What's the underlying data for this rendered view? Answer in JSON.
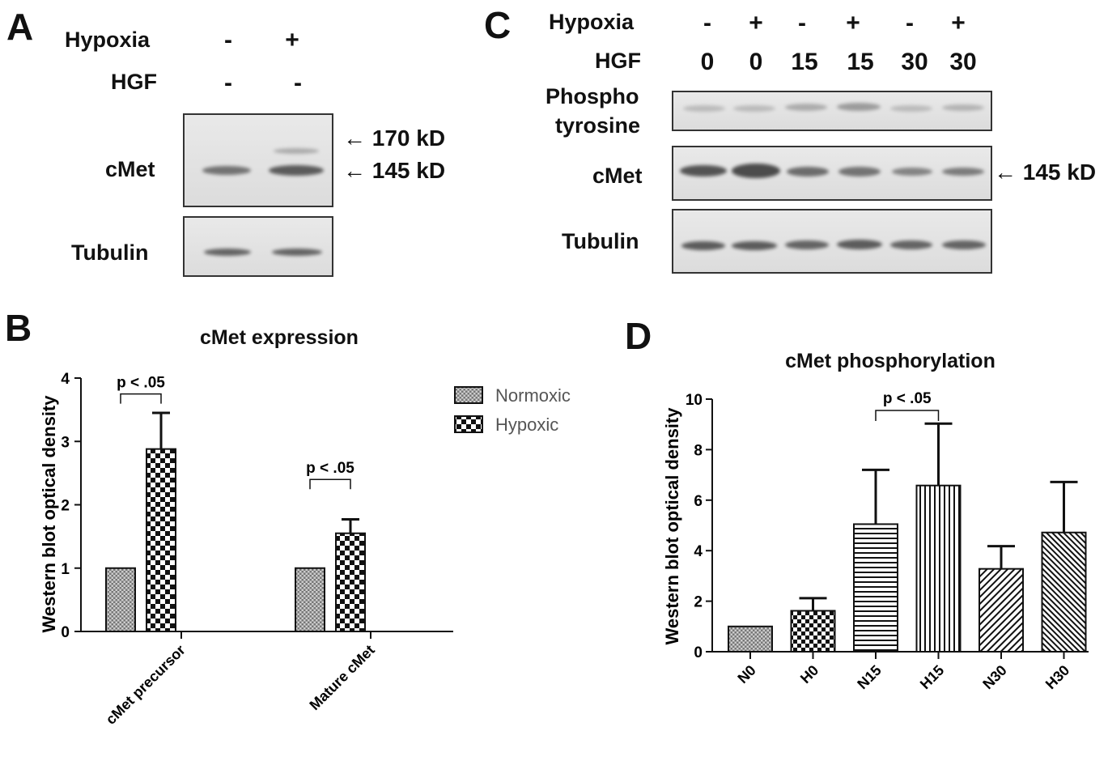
{
  "panels": {
    "A": {
      "letter": "A",
      "hypoxia_label": "Hypoxia",
      "hgf_label": "HGF",
      "hypoxia_values": [
        "-",
        "+"
      ],
      "hgf_values": [
        "-",
        "-"
      ],
      "row_cmet": "cMet",
      "row_tubulin": "Tubulin",
      "marker_170": "170 kD",
      "marker_145": "145 kD"
    },
    "C": {
      "letter": "C",
      "hypoxia_label": "Hypoxia",
      "hgf_label": "HGF",
      "hypoxia_values": [
        "-",
        "+",
        "-",
        "+",
        "-",
        "+"
      ],
      "hgf_values": [
        "0",
        "0",
        "15",
        "15",
        "30",
        "30"
      ],
      "row_phospho_1": "Phospho",
      "row_phospho_2": "tyrosine",
      "row_cmet": "cMet",
      "row_tubulin": "Tubulin",
      "marker_145": "145 kD"
    },
    "B": {
      "letter": "B"
    },
    "D": {
      "letter": "D"
    }
  },
  "chart_data": [
    {
      "type": "bar",
      "panel": "B",
      "title": "cMet expression",
      "ylabel": "Western blot optical density",
      "categories": [
        "cMet precursor",
        "Mature cMet"
      ],
      "series": [
        {
          "name": "Normoxic",
          "values": [
            1.0,
            1.0
          ],
          "error": [
            0,
            0
          ]
        },
        {
          "name": "Hypoxic",
          "values": [
            2.88,
            1.55
          ],
          "error": [
            0.57,
            0.22
          ]
        }
      ],
      "ylim": [
        0,
        4
      ],
      "yticks": [
        0,
        1,
        2,
        3,
        4
      ],
      "annotations": [
        "p < .05",
        "p < .05"
      ],
      "legend": "right"
    },
    {
      "type": "bar",
      "panel": "D",
      "title": "cMet phosphorylation",
      "ylabel": "Western blot optical density",
      "categories": [
        "N0",
        "H0",
        "N15",
        "H15",
        "N30",
        "H30"
      ],
      "values": [
        1.0,
        1.62,
        5.05,
        6.58,
        3.28,
        4.72
      ],
      "error": [
        0,
        0.5,
        2.15,
        2.45,
        0.9,
        2.0
      ],
      "ylim": [
        0,
        10
      ],
      "yticks": [
        0,
        2,
        4,
        6,
        8,
        10
      ],
      "annotations": [
        "p < .05"
      ]
    }
  ]
}
